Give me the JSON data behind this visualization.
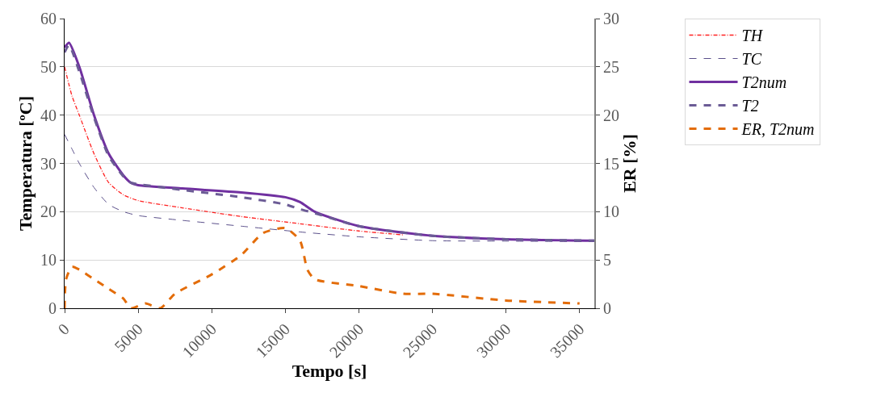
{
  "chart_data": {
    "type": "line",
    "xlabel": "Tempo [s]",
    "ylabel": "Temperatura [ºC]",
    "y2label": "ER [%]",
    "xlim": [
      0,
      36000
    ],
    "xticks": [
      0,
      5000,
      10000,
      15000,
      20000,
      25000,
      30000,
      35000
    ],
    "ylim": [
      0,
      60
    ],
    "yticks": [
      0,
      10,
      20,
      30,
      40,
      50,
      60
    ],
    "y2lim": [
      0,
      30
    ],
    "y2ticks": [
      0,
      5,
      10,
      15,
      20,
      25,
      30
    ],
    "grid": "y",
    "legend": "right",
    "marker": "none",
    "series": [
      {
        "name": "TH",
        "color": "#ff2020",
        "line_style": "dotted",
        "x": [
          0,
          500,
          1000,
          2000,
          3000,
          4000,
          5000,
          8000,
          12000,
          16000,
          20000,
          23000
        ],
        "values": [
          50,
          44,
          40,
          32,
          26,
          23.5,
          22.3,
          20.8,
          19,
          17.5,
          16,
          15.2
        ]
      },
      {
        "name": "TC",
        "color": "#5a4f8a",
        "line_style": "dashed",
        "x": [
          0,
          500,
          1000,
          2000,
          3000,
          4000,
          5000,
          8000,
          12000,
          16000,
          20000,
          25000,
          30000,
          36000
        ],
        "values": [
          36,
          33,
          30,
          25,
          21.5,
          20,
          19.2,
          18.2,
          17,
          15.8,
          14.8,
          14,
          13.9,
          13.8
        ]
      },
      {
        "name": "T2num",
        "color": "#7030a0",
        "line_style": "solid",
        "x": [
          0,
          300,
          1000,
          2000,
          3000,
          4000,
          4500,
          5000,
          8000,
          12000,
          15000,
          16000,
          17000,
          20000,
          25000,
          30000,
          36000
        ],
        "values": [
          54,
          55,
          50,
          40,
          32,
          27.5,
          26,
          25.5,
          24.8,
          24,
          23,
          22,
          20,
          17,
          15,
          14.3,
          14
        ]
      },
      {
        "name": "T2",
        "color": "#6b5b95",
        "line_style": "dashed",
        "x": [
          0,
          300,
          1000,
          2000,
          3000,
          4000,
          4500,
          5000,
          8000,
          12000,
          15000,
          16000,
          17000,
          20000,
          25000,
          30000,
          36000
        ],
        "values": [
          53,
          54.5,
          49,
          39.5,
          31.5,
          27.3,
          26,
          25.7,
          24.5,
          23,
          21.5,
          20.5,
          19.7,
          17,
          15,
          14.3,
          14
        ]
      },
      {
        "name": "ER, T2num",
        "color": "#e36c09",
        "line_style": "dashed",
        "axis": "y2",
        "x": [
          0,
          100,
          500,
          1000,
          2000,
          3000,
          4000,
          4500,
          5500,
          6500,
          7500,
          10000,
          12000,
          13500,
          15000,
          16000,
          16500,
          17000,
          20000,
          23000,
          25000,
          30000,
          35000
        ],
        "values": [
          0,
          3,
          4.3,
          4,
          3,
          2,
          1,
          0,
          0.5,
          0,
          1.5,
          3.5,
          5.5,
          7.8,
          8.3,
          7,
          4,
          3,
          2.3,
          1.5,
          1.5,
          0.8,
          0.5
        ]
      }
    ]
  }
}
